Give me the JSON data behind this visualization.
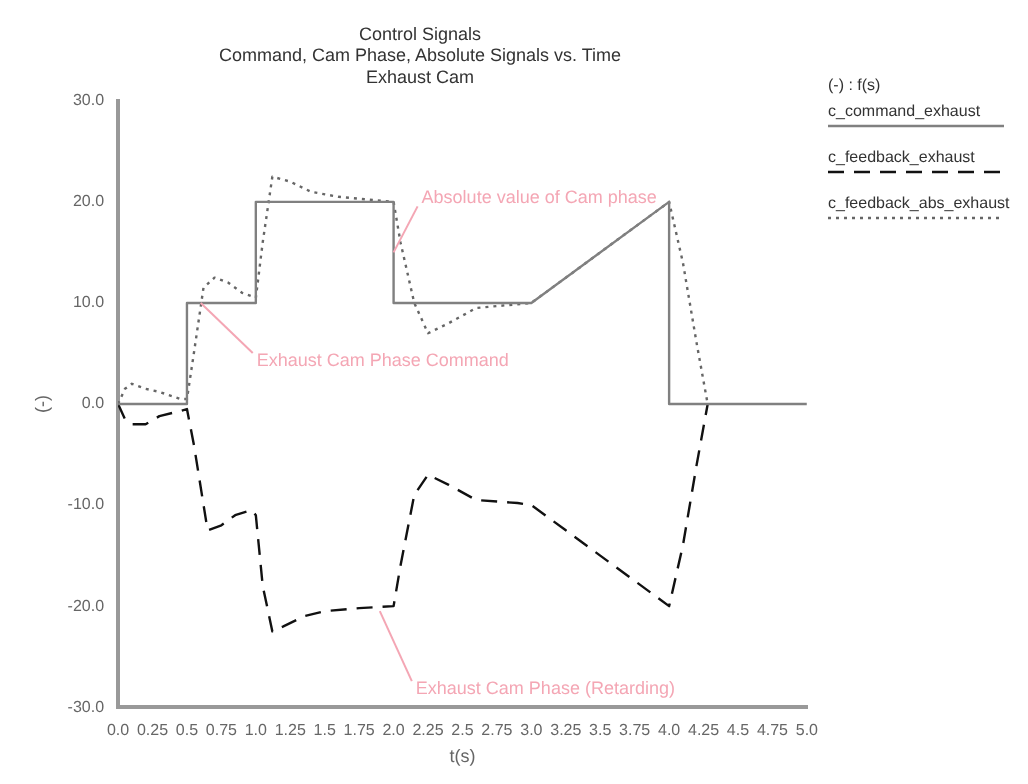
{
  "chart_data": {
    "type": "line",
    "title": "Control Signals",
    "subtitle": "Command, Cam Phase, Absolute Signals vs. Time\nExhaust Cam",
    "xlabel": "t(s)",
    "ylabel": "(-)",
    "legend_title": "(-) : f(s)",
    "legend": "right",
    "grid": false,
    "marker": "none",
    "xlim": [
      0,
      5
    ],
    "ylim": [
      -30,
      30
    ],
    "xticks": [
      {
        "value": 0,
        "label": "0.0"
      },
      0.25,
      0.5,
      0.75,
      {
        "value": 1,
        "label": "1.0"
      },
      1.25,
      1.5,
      1.75,
      {
        "value": 2,
        "label": "2.0"
      },
      2.25,
      2.5,
      2.75,
      {
        "value": 3,
        "label": "3.0"
      },
      3.25,
      3.5,
      3.75,
      {
        "value": 4,
        "label": "4.0"
      },
      4.25,
      4.5,
      4.75,
      {
        "value": 5,
        "label": "5.0"
      }
    ],
    "yticks": [
      {
        "value": -30,
        "label": "-30.0"
      },
      {
        "value": -20,
        "label": "-20.0"
      },
      {
        "value": -10,
        "label": "-10.0"
      },
      {
        "value": 0,
        "label": "0.0"
      },
      {
        "value": 10,
        "label": "10.0"
      },
      {
        "value": 20,
        "label": "20.0"
      },
      {
        "value": 30,
        "label": "30.0"
      }
    ],
    "series": [
      {
        "name": "c_command_exhaust",
        "color": "#808080",
        "line_style": "solid",
        "x": [
          0,
          0.5,
          0.5,
          1,
          1,
          2,
          2,
          3,
          4,
          4,
          5
        ],
        "values": [
          0,
          0,
          10,
          10,
          20,
          20,
          10,
          10,
          20,
          0,
          0
        ]
      },
      {
        "name": "c_feedback_exhaust",
        "color": "#111111",
        "line_style": "dashed",
        "x": [
          0,
          0.05,
          0.1,
          0.2,
          0.3,
          0.45,
          0.5,
          0.55,
          0.65,
          0.75,
          0.85,
          0.97,
          1.0,
          1.05,
          1.12,
          1.2,
          1.35,
          1.5,
          1.75,
          2.0,
          2.05,
          2.15,
          2.25,
          2.4,
          2.6,
          2.9,
          3.0,
          3.25,
          3.5,
          3.75,
          4.0,
          4.1,
          4.2,
          4.28
        ],
        "values": [
          0,
          -1.5,
          -2,
          -2,
          -1.2,
          -0.7,
          -0.5,
          -4,
          -12.5,
          -12,
          -11,
          -10.5,
          -11,
          -18,
          -22.5,
          -22,
          -21,
          -20.5,
          -20.2,
          -20,
          -16,
          -9,
          -7,
          -8,
          -9.5,
          -9.8,
          -10,
          -12.5,
          -15,
          -17.5,
          -20,
          -14,
          -6,
          0
        ]
      },
      {
        "name": "c_feedback_abs_exhaust",
        "color": "#666666",
        "line_style": "dotted",
        "x": [
          0,
          0.05,
          0.1,
          0.2,
          0.3,
          0.45,
          0.5,
          0.55,
          0.62,
          0.7,
          0.8,
          0.9,
          1.0,
          1.05,
          1.12,
          1.25,
          1.4,
          1.6,
          2.0,
          2.05,
          2.15,
          2.25,
          2.4,
          2.6,
          3.0,
          3.5,
          4.0,
          4.1,
          4.2,
          4.28
        ],
        "values": [
          0,
          1.5,
          2,
          1.5,
          1.2,
          0.5,
          0.5,
          5,
          11.5,
          12.5,
          12,
          11,
          10.5,
          16,
          22.5,
          22,
          21,
          20.5,
          20,
          16,
          10,
          7,
          8,
          9.5,
          10,
          15,
          20,
          14,
          6,
          0
        ]
      }
    ],
    "annotations": [
      {
        "text": "Absolute value of Cam phase",
        "x": 2.0,
        "y": 15
      },
      {
        "text": "Exhaust Cam Phase Command",
        "x": 0.6,
        "y": 10
      },
      {
        "text": "Exhaust Cam Phase (Retarding)",
        "x": 1.9,
        "y": -20.5
      }
    ]
  }
}
